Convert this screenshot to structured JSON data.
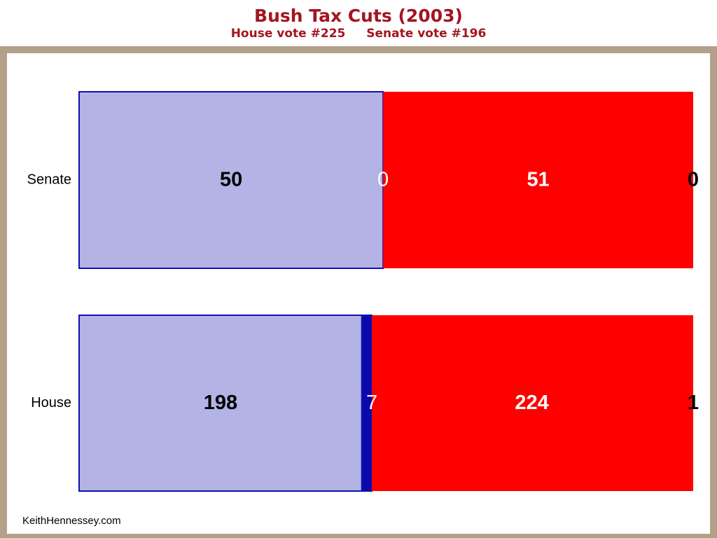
{
  "title": "Bush Tax Cuts (2003)",
  "subtitle_house": "House vote #225",
  "subtitle_senate": "Senate vote #196",
  "footer": "KeithHennessey.com",
  "colors": {
    "title": "#a31521",
    "frame": "#b3a089",
    "dem_yes_fill": "#b3b3e6",
    "dem_outline": "#1010b3",
    "dem_no_fill": "#0a0aaa",
    "rep_yes_fill": "#ff0000",
    "rep_no_fill": "#ff0000"
  },
  "chart_data": {
    "type": "bar",
    "orientation": "horizontal",
    "stacked": "100%",
    "categories": [
      "Senate",
      "House"
    ],
    "series": [
      {
        "key": "dem_yes",
        "values": [
          50,
          198
        ]
      },
      {
        "key": "dem_no",
        "values": [
          0,
          7
        ]
      },
      {
        "key": "rep_yes",
        "values": [
          51,
          224
        ]
      },
      {
        "key": "rep_no",
        "values": [
          0,
          1
        ]
      }
    ],
    "labels": {
      "Senate": [
        "50",
        "0",
        "51",
        "0"
      ],
      "House": [
        "198",
        "7",
        "224",
        "1"
      ]
    },
    "legend": "none",
    "grid": false
  }
}
